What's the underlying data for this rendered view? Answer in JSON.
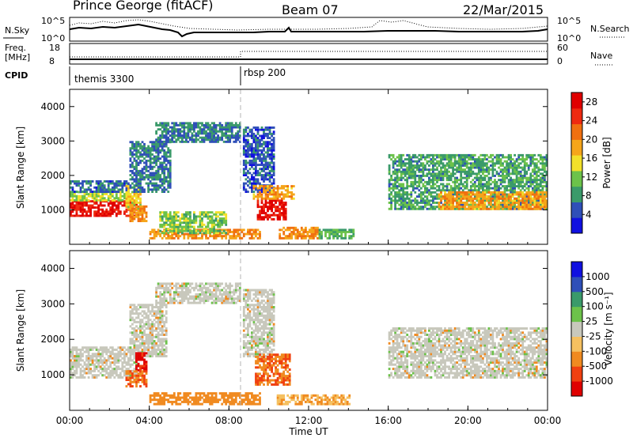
{
  "header": {
    "station": "Prince George (fitACF)",
    "beam": "Beam 07",
    "date": "22/Mar/2015"
  },
  "strip_labels": {
    "nsky": "N.Sky",
    "nsky_top": "10^5",
    "nsky_bottom": "10^0",
    "nsearch": "N.Search",
    "nsearch_top": "10^5",
    "nsearch_bottom": "10^0",
    "freq_line1": "Freq.",
    "freq_line2": "[MHz]",
    "freq_top": "18",
    "freq_bottom": "8",
    "nave": "Nave",
    "nave_top": "60",
    "nave_bottom": "0",
    "cpid": "CPID",
    "cpid_1": "themis 3300",
    "cpid_2": "rbsp 200"
  },
  "colors": {
    "power": [
      "#1010e0",
      "#2f4fb8",
      "#3a9a6a",
      "#6cc24a",
      "#f2e02a",
      "#f5a51a",
      "#f07010",
      "#ee2a10",
      "#e00000"
    ],
    "velocity": [
      "#e00000",
      "#f04010",
      "#f08a20",
      "#f5c060",
      "#c8c8bc",
      "#6cc24a",
      "#3a9a6a",
      "#2f4fb8",
      "#1010e0"
    ]
  },
  "chart_data": [
    {
      "type": "heatmap",
      "quantity": "Power",
      "xlabel": "",
      "ylabel": "Slant Range [km]",
      "x_ticks": [
        "00:00",
        "04:00",
        "08:00",
        "12:00",
        "16:00",
        "20:00",
        "00:00"
      ],
      "x_range_hours": [
        0,
        24
      ],
      "y_ticks": [
        "1000",
        "2000",
        "3000",
        "4000"
      ],
      "ylim": [
        0,
        4500
      ],
      "colorbar_label": "Power [dB]",
      "colorbar_ticks": [
        "4",
        "8",
        "12",
        "16",
        "20",
        "24",
        "28"
      ],
      "colorbar_range": [
        0,
        30
      ],
      "regions": [
        {
          "t0": 0.0,
          "t1": 3.4,
          "r0": 800,
          "r1": 1250,
          "level": 27
        },
        {
          "t0": 0.0,
          "t1": 3.4,
          "r0": 1250,
          "r1": 1500,
          "level": 13
        },
        {
          "t0": 0.0,
          "t1": 3.0,
          "r0": 1500,
          "r1": 1850,
          "level": 6
        },
        {
          "t0": 2.8,
          "t1": 3.6,
          "r0": 1000,
          "r1": 1700,
          "level": 16
        },
        {
          "t0": 3.0,
          "t1": 5.0,
          "r0": 1500,
          "r1": 3000,
          "level": 7
        },
        {
          "t0": 4.3,
          "t1": 8.5,
          "r0": 2950,
          "r1": 3550,
          "level": 7
        },
        {
          "t0": 3.0,
          "t1": 3.9,
          "r0": 650,
          "r1": 1100,
          "level": 20
        },
        {
          "t0": 4.0,
          "t1": 9.5,
          "r0": 150,
          "r1": 450,
          "level": 20
        },
        {
          "t0": 4.5,
          "t1": 7.8,
          "r0": 300,
          "r1": 950,
          "level": 12
        },
        {
          "t0": 8.7,
          "t1": 10.2,
          "r0": 1500,
          "r1": 3400,
          "level": 5
        },
        {
          "t0": 9.4,
          "t1": 10.8,
          "r0": 700,
          "r1": 1300,
          "level": 28
        },
        {
          "t0": 9.2,
          "t1": 11.2,
          "r0": 1300,
          "r1": 1700,
          "level": 19
        },
        {
          "t0": 10.5,
          "t1": 12.4,
          "r0": 150,
          "r1": 500,
          "level": 20
        },
        {
          "t0": 12.5,
          "t1": 14.2,
          "r0": 150,
          "r1": 450,
          "level": 10
        },
        {
          "t0": 16.0,
          "t1": 24.0,
          "r0": 1000,
          "r1": 2600,
          "level": 9
        },
        {
          "t0": 18.5,
          "t1": 24.0,
          "r0": 1000,
          "r1": 1500,
          "level": 19
        }
      ]
    },
    {
      "type": "heatmap",
      "quantity": "Velocity",
      "xlabel": "Time UT",
      "ylabel": "Slant Range [km]",
      "x_ticks": [
        "00:00",
        "04:00",
        "08:00",
        "12:00",
        "16:00",
        "20:00",
        "00:00"
      ],
      "x_range_hours": [
        0,
        24
      ],
      "y_ticks": [
        "1000",
        "2000",
        "3000",
        "4000"
      ],
      "ylim": [
        0,
        4500
      ],
      "colorbar_label": "Velocity [m s⁻¹]",
      "colorbar_ticks": [
        "-1000",
        "-500",
        "-100",
        "-25",
        "25",
        "100",
        "500",
        "1000"
      ],
      "colorbar_range": [
        -1000,
        1000
      ],
      "regions": [
        {
          "t0": 0.0,
          "t1": 3.4,
          "r0": 900,
          "r1": 1800,
          "level": 0
        },
        {
          "t0": 3.0,
          "t1": 4.8,
          "r0": 1500,
          "r1": 3000,
          "level": 0
        },
        {
          "t0": 4.3,
          "t1": 8.5,
          "r0": 3000,
          "r1": 3550,
          "level": 0
        },
        {
          "t0": 3.3,
          "t1": 3.9,
          "r0": 1100,
          "r1": 1600,
          "level": -1000
        },
        {
          "t0": 2.8,
          "t1": 3.9,
          "r0": 650,
          "r1": 1100,
          "level": -300
        },
        {
          "t0": 4.0,
          "t1": 9.5,
          "r0": 150,
          "r1": 500,
          "level": -100
        },
        {
          "t0": 8.7,
          "t1": 10.2,
          "r0": 1500,
          "r1": 3400,
          "level": 0
        },
        {
          "t0": 9.3,
          "t1": 11.0,
          "r0": 700,
          "r1": 1600,
          "level": -300
        },
        {
          "t0": 10.4,
          "t1": 14.0,
          "r0": 150,
          "r1": 450,
          "level": -60
        },
        {
          "t0": 16.0,
          "t1": 24.0,
          "r0": 900,
          "r1": 2300,
          "level": 0
        }
      ]
    }
  ]
}
